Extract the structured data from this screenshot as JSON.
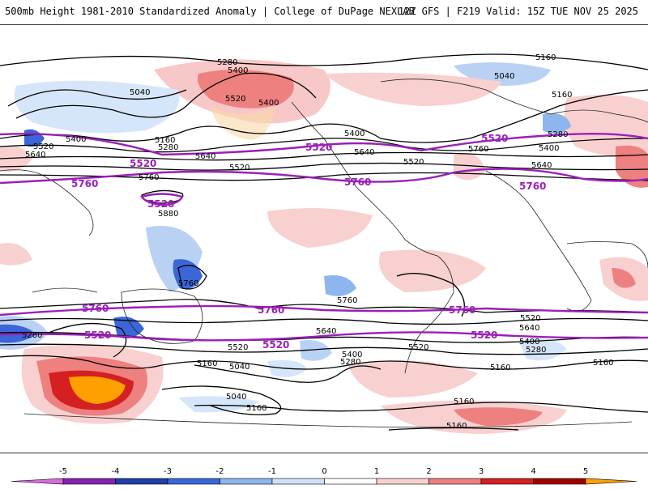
{
  "header": {
    "title": "500mb Height 1981-2010 Standardized Anomaly | College of DuPage NEXLAB",
    "run_info": "12Z GFS | F219 Valid: 15Z TUE NOV 25 2025"
  },
  "map": {
    "contour_labels_black": [
      "5280",
      "5400",
      "5040",
      "5520",
      "5400",
      "5160",
      "5040",
      "5160",
      "5400",
      "5640",
      "5520",
      "5160",
      "5280",
      "5640",
      "5520",
      "5760",
      "5880",
      "5640",
      "5400",
      "5280",
      "5520",
      "5760",
      "5640",
      "5400",
      "5760",
      "5760",
      "5280",
      "5520",
      "5640",
      "5160",
      "5520",
      "5400",
      "5040",
      "5280",
      "5040",
      "5160",
      "5160",
      "5160",
      "5160",
      "5160",
      "5640",
      "5400",
      "5280",
      "5520"
    ],
    "contour_labels_purple": [
      "5520",
      "5520",
      "5760",
      "5520",
      "5760",
      "5520",
      "5760",
      "5760",
      "5760",
      "5520",
      "5520",
      "5520",
      "5760"
    ]
  },
  "legend": {
    "ticks": [
      "-5",
      "-4",
      "-3",
      "-2",
      "-1",
      "0",
      "1",
      "2",
      "3",
      "4",
      "5"
    ],
    "colors": [
      "#d66be0",
      "#8a1fb0",
      "#1e3ea8",
      "#3a66d8",
      "#8db6ee",
      "#cfe0f8",
      "#ffffff",
      "#f8d0d0",
      "#ee8080",
      "#d42020",
      "#a00000",
      "#ffa000"
    ]
  }
}
